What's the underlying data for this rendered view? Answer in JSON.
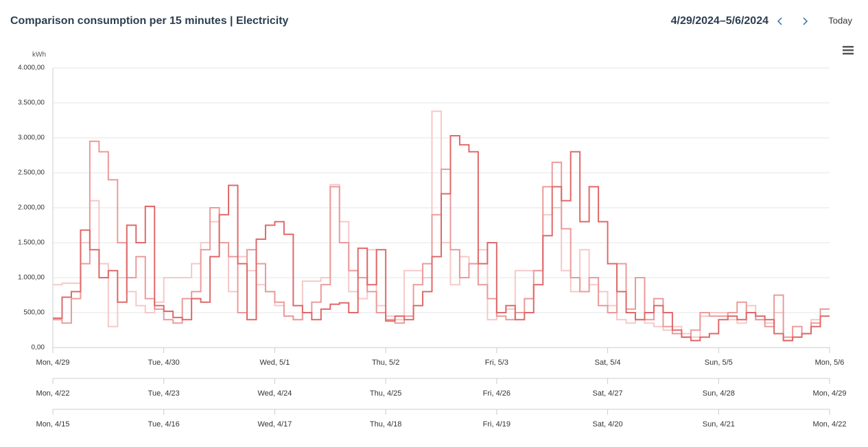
{
  "header": {
    "title": "Comparison consumption per 15 minutes | Electricity",
    "date_range": "4/29/2024–5/6/2024",
    "today_button": "Today"
  },
  "chart_data": {
    "type": "line",
    "step": true,
    "y_unit": "kWh",
    "grid": true,
    "ylim": [
      0,
      4000
    ],
    "yticks": [
      {
        "value": 0,
        "label": "0,00"
      },
      {
        "value": 500,
        "label": "500,00"
      },
      {
        "value": 1000,
        "label": "1.000,00"
      },
      {
        "value": 1500,
        "label": "1.500,00"
      },
      {
        "value": 2000,
        "label": "2.000,00"
      },
      {
        "value": 2500,
        "label": "2.500,00"
      },
      {
        "value": 3000,
        "label": "3.000,00"
      },
      {
        "value": 3500,
        "label": "3.500,00"
      },
      {
        "value": 4000,
        "label": "4.000,00"
      }
    ],
    "xaxes": [
      {
        "ticks": [
          "Mon, 4/29",
          "Tue, 4/30",
          "Wed, 5/1",
          "Thu, 5/2",
          "Fri, 5/3",
          "Sat, 5/4",
          "Sun, 5/5",
          "Mon, 5/6"
        ]
      },
      {
        "ticks": [
          "Mon, 4/22",
          "Tue, 4/23",
          "Wed, 4/24",
          "Thu, 4/25",
          "Fri, 4/26",
          "Sat, 4/27",
          "Sun, 4/28",
          "Mon, 4/29"
        ]
      },
      {
        "ticks": [
          "Mon, 4/15",
          "Tue, 4/16",
          "Wed, 4/17",
          "Thu, 4/18",
          "Fri, 4/19",
          "Sat, 4/20",
          "Sun, 4/21",
          "Mon, 4/22"
        ]
      }
    ],
    "series": [
      {
        "color": "#e06868",
        "values": [
          420,
          720,
          800,
          1680,
          1400,
          1000,
          1100,
          650,
          1750,
          1500,
          2020,
          600,
          520,
          430,
          400,
          700,
          650,
          1300,
          1900,
          2320,
          1200,
          400,
          1550,
          1750,
          1800,
          1620,
          600,
          500,
          400,
          550,
          620,
          640,
          500,
          1420,
          900,
          1400,
          380,
          450,
          400,
          600,
          800,
          1300,
          2200,
          3030,
          2900,
          2800,
          1200,
          1500,
          500,
          600,
          400,
          500,
          900,
          1600,
          2300,
          2100,
          2800,
          1800,
          2300,
          1800,
          1200,
          800,
          500,
          400,
          500,
          600,
          500,
          250,
          150,
          100,
          150,
          200,
          400,
          450,
          400,
          500,
          450,
          400,
          200,
          100,
          150,
          200,
          300,
          450
        ]
      },
      {
        "color": "#eb9a9a",
        "values": [
          400,
          350,
          700,
          1200,
          2950,
          2800,
          2400,
          1500,
          1000,
          1300,
          700,
          550,
          400,
          350,
          700,
          800,
          1400,
          2000,
          1500,
          1300,
          500,
          1400,
          1200,
          800,
          650,
          450,
          400,
          500,
          650,
          900,
          2300,
          1500,
          1100,
          1000,
          800,
          500,
          400,
          350,
          450,
          900,
          1200,
          1900,
          2550,
          1400,
          1000,
          1200,
          900,
          700,
          450,
          400,
          500,
          700,
          1100,
          2300,
          2650,
          1700,
          1000,
          800,
          1000,
          600,
          500,
          1200,
          550,
          1000,
          400,
          700,
          300,
          200,
          150,
          250,
          500,
          450,
          450,
          500,
          650,
          500,
          400,
          300,
          750,
          150,
          300,
          200,
          350,
          550
        ]
      },
      {
        "color": "#f6c8c8",
        "values": [
          900,
          920,
          920,
          1500,
          2100,
          1200,
          300,
          1000,
          800,
          600,
          500,
          650,
          1000,
          1000,
          1000,
          1200,
          1500,
          1800,
          1500,
          800,
          1300,
          1100,
          900,
          800,
          600,
          450,
          400,
          950,
          950,
          1000,
          2330,
          1800,
          800,
          700,
          1400,
          600,
          450,
          400,
          1100,
          1100,
          1000,
          3380,
          1500,
          900,
          1300,
          1200,
          1400,
          400,
          500,
          550,
          1100,
          1100,
          1100,
          1900,
          2000,
          1100,
          800,
          1400,
          900,
          800,
          600,
          400,
          350,
          400,
          350,
          300,
          250,
          300,
          200,
          150,
          450,
          500,
          500,
          400,
          350,
          600,
          400,
          350,
          500,
          100,
          150,
          200,
          400,
          550
        ]
      }
    ]
  }
}
